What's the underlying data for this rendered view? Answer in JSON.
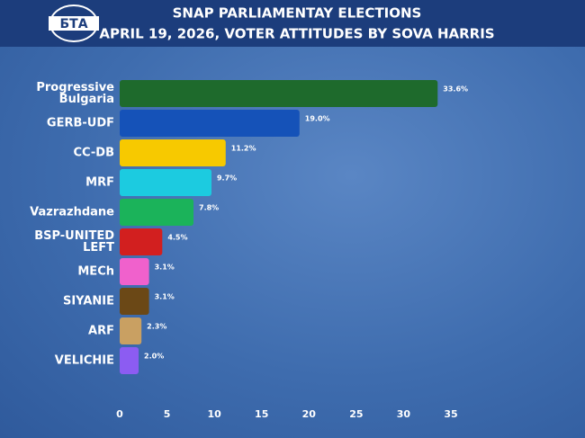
{
  "chart_data": {
    "type": "bar",
    "orientation": "horizontal",
    "logo": "БТА",
    "title": "SNAP PARLIAMENTAY ELECTIONS",
    "subtitle": "APRIL 19, 2026, VOTER ATTITUDES BY SOVA HARRIS",
    "categories": [
      "Progressive Bulgaria",
      "GERB-UDF",
      "CC-DB",
      "MRF",
      "Vazrazhdane",
      "BSP-UNITED LEFT",
      "MECh",
      "SIYANIE",
      "ARF",
      "VELICHIE"
    ],
    "values": [
      33.6,
      19.0,
      11.2,
      9.7,
      7.8,
      4.5,
      3.1,
      3.1,
      2.3,
      2.0
    ],
    "value_labels": [
      "33.6%",
      "19.0%",
      "11.2%",
      "9.7%",
      "7.8%",
      "4.5%",
      "3.1%",
      "3.1%",
      "2.3%",
      "2.0%"
    ],
    "colors": [
      "#1e6a2c",
      "#1552b8",
      "#f7c900",
      "#1ccbe0",
      "#1bb35a",
      "#d21f1f",
      "#f061cc",
      "#6b4816",
      "#c9a062",
      "#8c5cf2"
    ],
    "xlim": [
      0,
      35
    ],
    "xticks": [
      0,
      5,
      10,
      15,
      20,
      25,
      30,
      35
    ],
    "grid": false
  }
}
